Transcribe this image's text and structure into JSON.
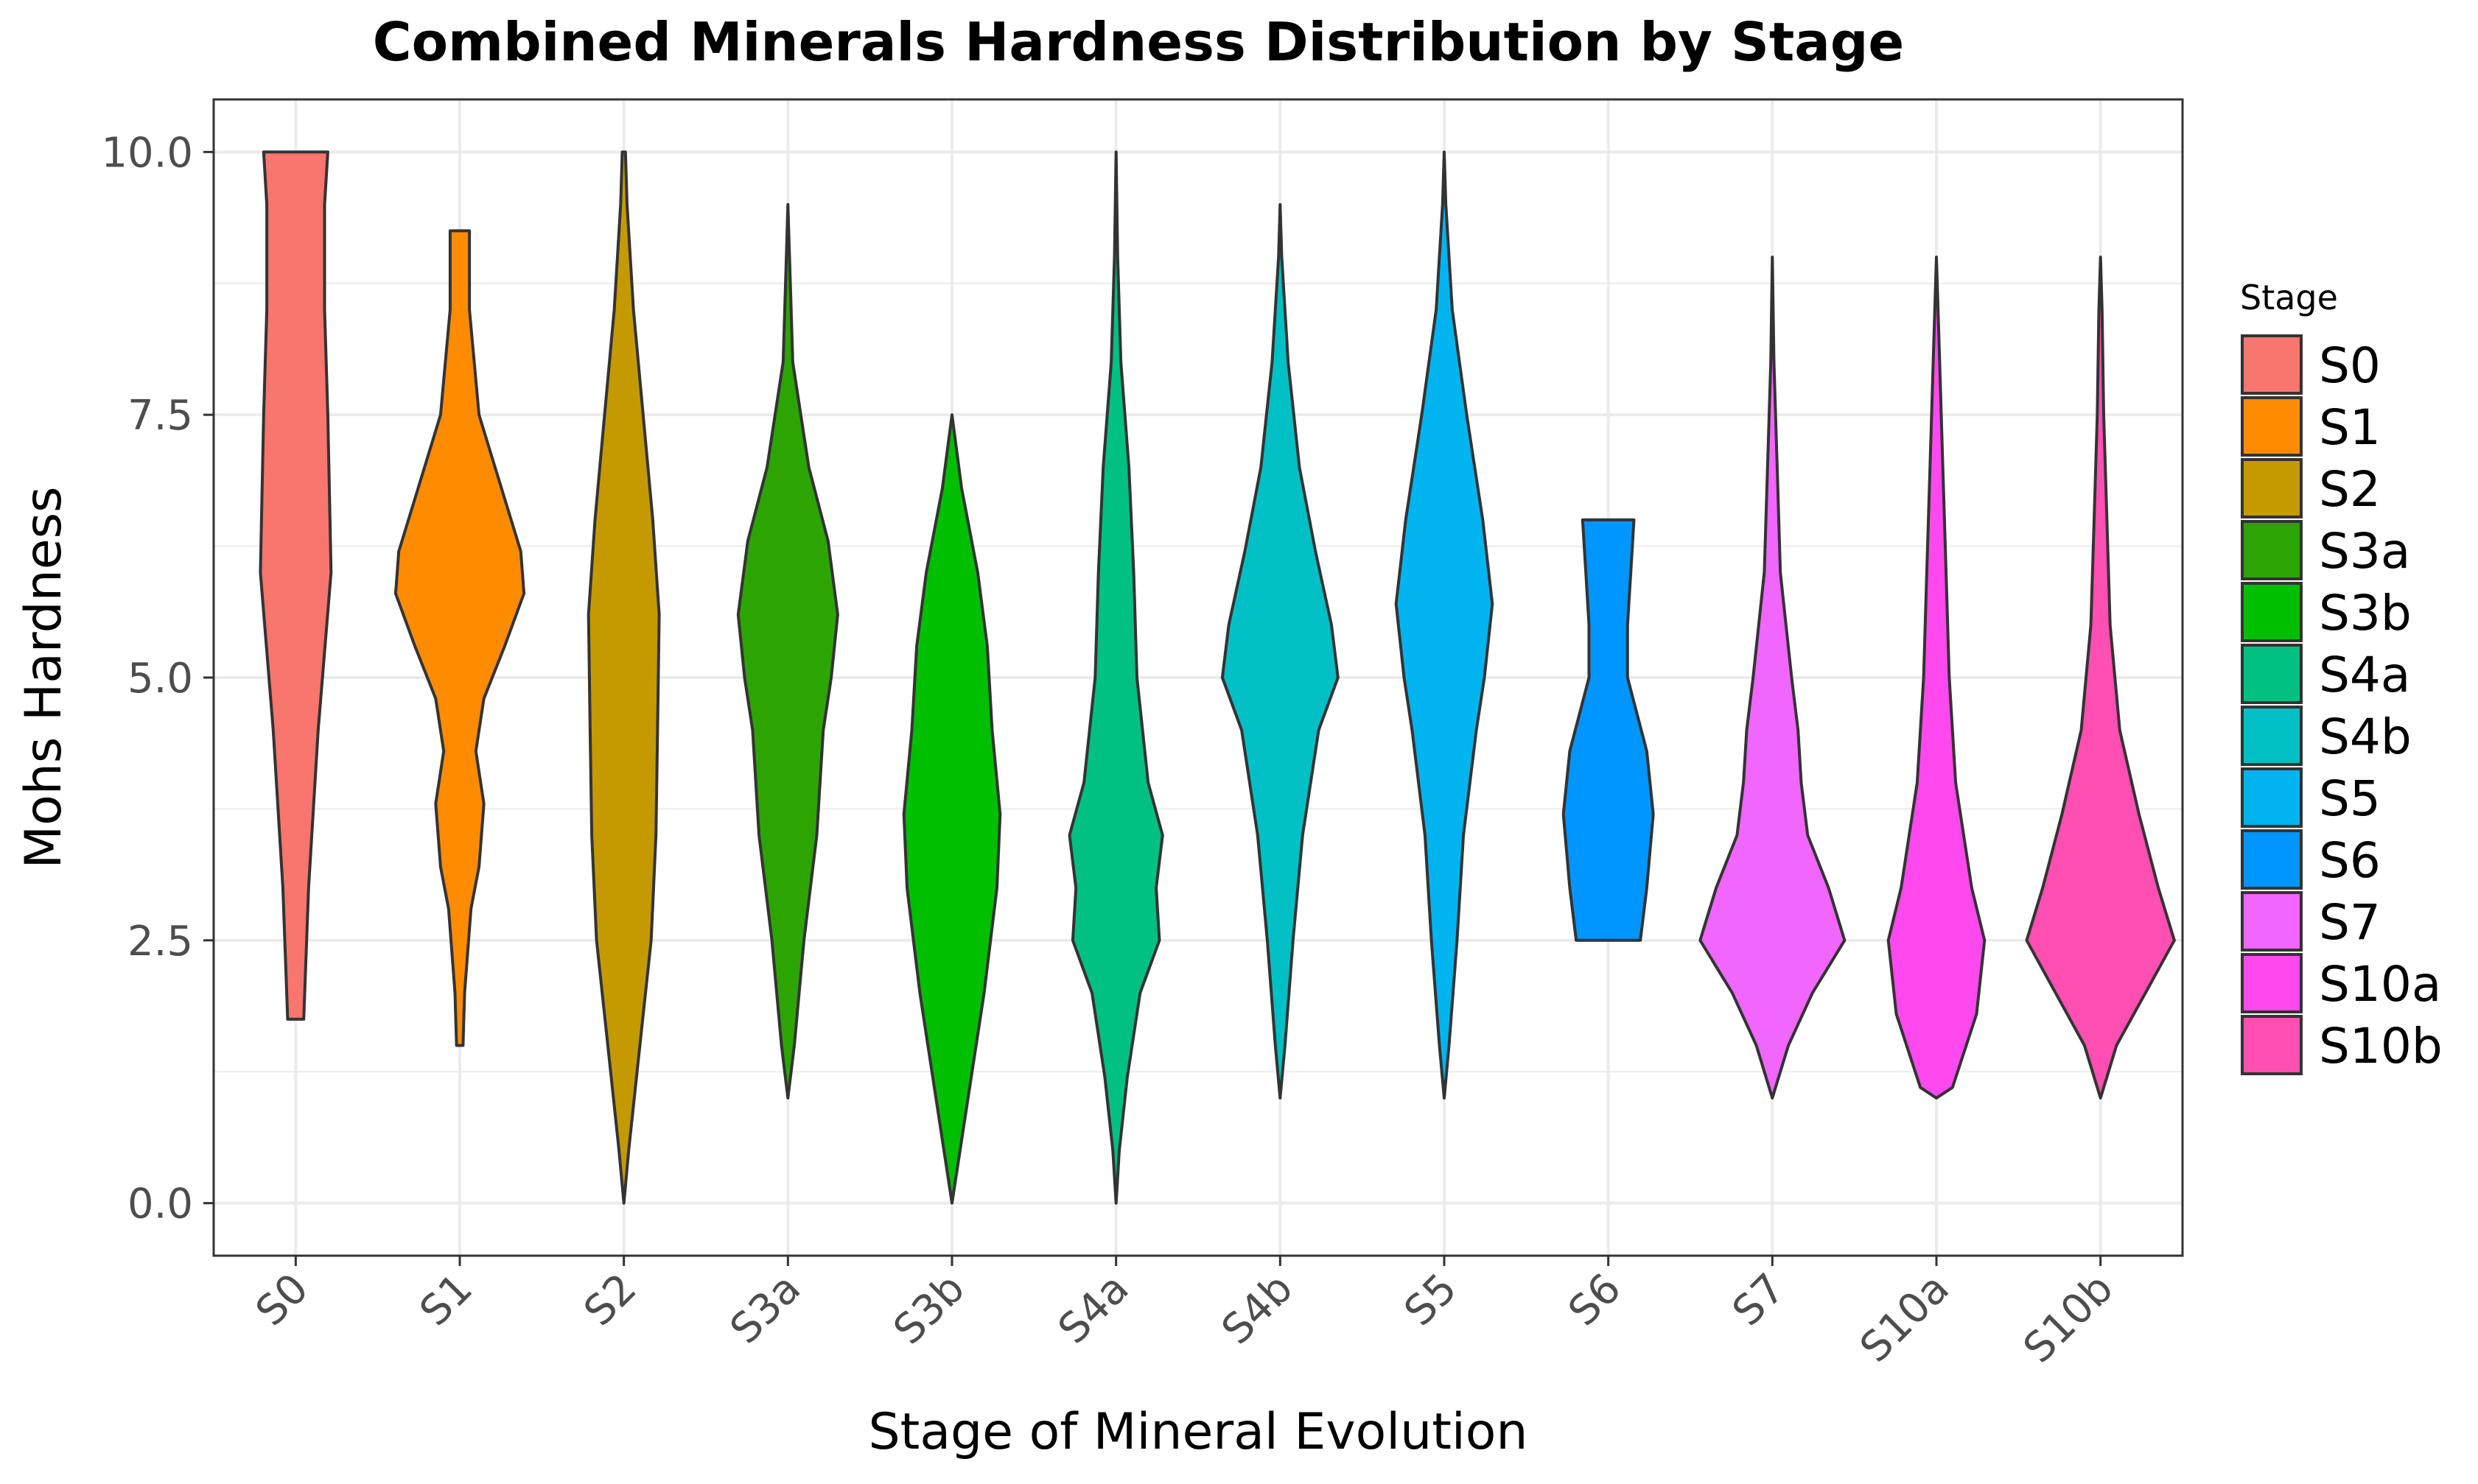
{
  "chart_data": {
    "type": "violin",
    "title": "Combined Minerals Hardness Distribution by Stage",
    "xlabel": "Stage of Mineral Evolution",
    "ylabel": "Mohs Hardness",
    "ylim": [
      -0.5,
      10.5
    ],
    "yticks": [
      "0.0",
      "2.5",
      "5.0",
      "7.5",
      "10.0"
    ],
    "ytick_values": [
      0,
      2.5,
      5,
      7.5,
      10
    ],
    "grid": true,
    "legend": {
      "title": "Stage",
      "position": "right"
    },
    "categories": [
      "S0",
      "S1",
      "S2",
      "S3a",
      "S3b",
      "S4a",
      "S4b",
      "S5",
      "S6",
      "S7",
      "S10a",
      "S10b"
    ],
    "series": [
      {
        "name": "S0",
        "color": "#F8766D",
        "min": 1.75,
        "max": 10.0,
        "profile": [
          [
            1.75,
            0.05
          ],
          [
            3.0,
            0.08
          ],
          [
            4.5,
            0.14
          ],
          [
            6.0,
            0.22
          ],
          [
            7.5,
            0.2
          ],
          [
            8.5,
            0.18
          ],
          [
            9.5,
            0.18
          ],
          [
            10.0,
            0.2
          ]
        ]
      },
      {
        "name": "S1",
        "color": "#FF8C00",
        "min": 1.5,
        "max": 9.25,
        "profile": [
          [
            1.5,
            0.02
          ],
          [
            2.0,
            0.03
          ],
          [
            2.8,
            0.07
          ],
          [
            3.2,
            0.12
          ],
          [
            3.8,
            0.15
          ],
          [
            4.3,
            0.1
          ],
          [
            4.8,
            0.15
          ],
          [
            5.3,
            0.28
          ],
          [
            5.8,
            0.4
          ],
          [
            6.2,
            0.38
          ],
          [
            6.8,
            0.26
          ],
          [
            7.5,
            0.12
          ],
          [
            8.5,
            0.06
          ],
          [
            9.25,
            0.06
          ]
        ]
      },
      {
        "name": "S2",
        "color": "#C49A00",
        "min": 0.0,
        "max": 10.0,
        "profile": [
          [
            0.0,
            0.0
          ],
          [
            0.5,
            0.03
          ],
          [
            1.5,
            0.1
          ],
          [
            2.5,
            0.17
          ],
          [
            3.5,
            0.2
          ],
          [
            4.5,
            0.21
          ],
          [
            5.6,
            0.22
          ],
          [
            6.5,
            0.18
          ],
          [
            7.5,
            0.12
          ],
          [
            8.5,
            0.06
          ],
          [
            9.5,
            0.02
          ],
          [
            10.0,
            0.01
          ]
        ]
      },
      {
        "name": "S3a",
        "color": "#2CA502",
        "min": 1.0,
        "max": 9.5,
        "profile": [
          [
            1.0,
            0.0
          ],
          [
            1.5,
            0.04
          ],
          [
            2.5,
            0.1
          ],
          [
            3.5,
            0.18
          ],
          [
            4.5,
            0.22
          ],
          [
            5.0,
            0.27
          ],
          [
            5.6,
            0.31
          ],
          [
            6.3,
            0.25
          ],
          [
            7.0,
            0.13
          ],
          [
            8.0,
            0.03
          ],
          [
            9.0,
            0.01
          ],
          [
            9.5,
            0.0
          ]
        ]
      },
      {
        "name": "S3b",
        "color": "#00BE00",
        "min": 0.0,
        "max": 7.5,
        "profile": [
          [
            0.0,
            0.0
          ],
          [
            0.5,
            0.05
          ],
          [
            1.0,
            0.1
          ],
          [
            2.0,
            0.2
          ],
          [
            3.0,
            0.28
          ],
          [
            3.7,
            0.3
          ],
          [
            4.5,
            0.25
          ],
          [
            5.3,
            0.22
          ],
          [
            6.0,
            0.16
          ],
          [
            6.8,
            0.06
          ],
          [
            7.5,
            0.0
          ]
        ]
      },
      {
        "name": "S4a",
        "color": "#00C082",
        "min": 0.0,
        "max": 10.0,
        "profile": [
          [
            0.0,
            0.0
          ],
          [
            0.5,
            0.02
          ],
          [
            1.2,
            0.07
          ],
          [
            2.0,
            0.15
          ],
          [
            2.5,
            0.27
          ],
          [
            3.0,
            0.25
          ],
          [
            3.5,
            0.29
          ],
          [
            4.0,
            0.2
          ],
          [
            5.0,
            0.13
          ],
          [
            6.0,
            0.11
          ],
          [
            7.0,
            0.08
          ],
          [
            8.0,
            0.03
          ],
          [
            9.0,
            0.01
          ],
          [
            10.0,
            0.0
          ]
        ]
      },
      {
        "name": "S4b",
        "color": "#00C0C5",
        "min": 1.0,
        "max": 9.5,
        "profile": [
          [
            1.0,
            0.0
          ],
          [
            1.5,
            0.03
          ],
          [
            2.5,
            0.08
          ],
          [
            3.5,
            0.14
          ],
          [
            4.5,
            0.24
          ],
          [
            5.0,
            0.36
          ],
          [
            5.5,
            0.32
          ],
          [
            6.2,
            0.22
          ],
          [
            7.0,
            0.12
          ],
          [
            8.0,
            0.05
          ],
          [
            9.0,
            0.01
          ],
          [
            9.5,
            0.0
          ]
        ]
      },
      {
        "name": "S5",
        "color": "#00B4F0",
        "min": 1.0,
        "max": 10.0,
        "profile": [
          [
            1.0,
            0.0
          ],
          [
            1.5,
            0.03
          ],
          [
            2.5,
            0.08
          ],
          [
            3.5,
            0.12
          ],
          [
            4.5,
            0.2
          ],
          [
            5.0,
            0.25
          ],
          [
            5.7,
            0.3
          ],
          [
            6.5,
            0.24
          ],
          [
            7.5,
            0.14
          ],
          [
            8.5,
            0.05
          ],
          [
            9.5,
            0.01
          ],
          [
            10.0,
            0.0
          ]
        ]
      },
      {
        "name": "S6",
        "color": "#0096FF",
        "min": 2.5,
        "max": 6.5,
        "profile": [
          [
            2.5,
            0.2
          ],
          [
            3.0,
            0.24
          ],
          [
            3.7,
            0.28
          ],
          [
            4.3,
            0.24
          ],
          [
            5.0,
            0.12
          ],
          [
            5.5,
            0.12
          ],
          [
            6.0,
            0.14
          ],
          [
            6.5,
            0.16
          ]
        ]
      },
      {
        "name": "S7",
        "color": "#F066FF",
        "min": 1.0,
        "max": 9.0,
        "profile": [
          [
            1.0,
            0.0
          ],
          [
            1.5,
            0.1
          ],
          [
            2.0,
            0.25
          ],
          [
            2.5,
            0.45
          ],
          [
            3.0,
            0.35
          ],
          [
            3.5,
            0.22
          ],
          [
            4.0,
            0.18
          ],
          [
            4.5,
            0.16
          ],
          [
            5.0,
            0.12
          ],
          [
            6.0,
            0.05
          ],
          [
            7.0,
            0.03
          ],
          [
            8.0,
            0.01
          ],
          [
            9.0,
            0.0
          ]
        ]
      },
      {
        "name": "S10a",
        "color": "#FF49EF",
        "min": 1.0,
        "max": 9.0,
        "profile": [
          [
            1.0,
            0.0
          ],
          [
            1.1,
            0.1
          ],
          [
            1.8,
            0.25
          ],
          [
            2.5,
            0.3
          ],
          [
            3.0,
            0.22
          ],
          [
            4.0,
            0.12
          ],
          [
            5.0,
            0.08
          ],
          [
            6.0,
            0.06
          ],
          [
            7.0,
            0.04
          ],
          [
            8.0,
            0.02
          ],
          [
            9.0,
            0.0
          ]
        ]
      },
      {
        "name": "S10b",
        "color": "#FF4FB3",
        "min": 1.0,
        "max": 9.0,
        "profile": [
          [
            1.0,
            0.0
          ],
          [
            1.5,
            0.1
          ],
          [
            2.0,
            0.28
          ],
          [
            2.5,
            0.46
          ],
          [
            3.0,
            0.36
          ],
          [
            3.7,
            0.24
          ],
          [
            4.5,
            0.12
          ],
          [
            5.5,
            0.06
          ],
          [
            6.5,
            0.04
          ],
          [
            7.5,
            0.02
          ],
          [
            8.5,
            0.01
          ],
          [
            9.0,
            0.0
          ]
        ]
      }
    ]
  }
}
